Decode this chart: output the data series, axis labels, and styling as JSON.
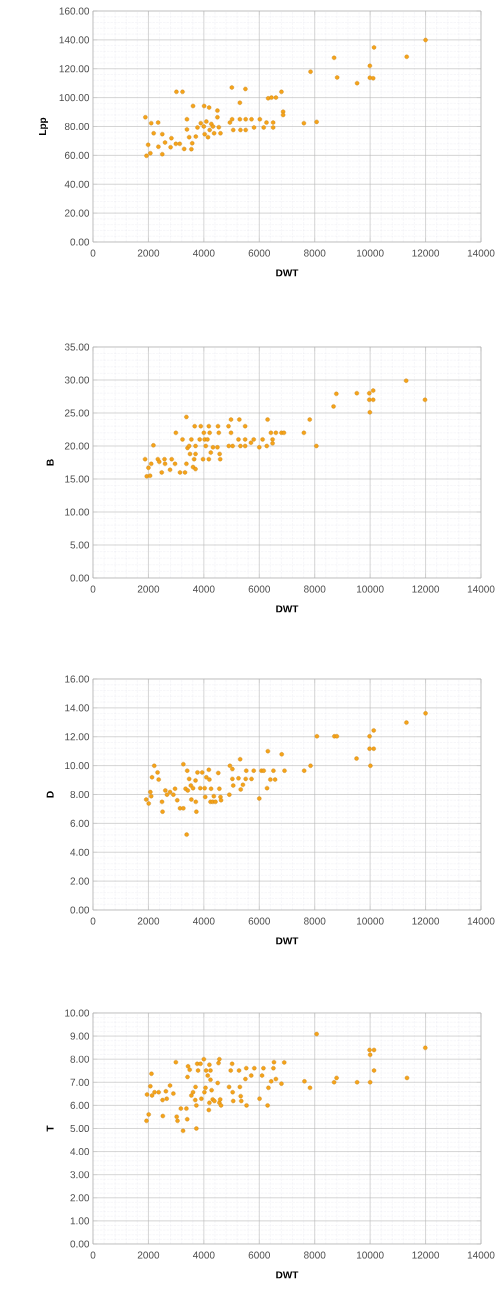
{
  "chart_data": [
    {
      "type": "scatter",
      "xlabel": "DWT",
      "ylabel": "Lpp",
      "color": "#f5a31a",
      "marker": "circle",
      "grid": true,
      "legend": false,
      "xlim": [
        0,
        14000
      ],
      "ylim": [
        0,
        160
      ],
      "xticks": [
        0,
        2000,
        4000,
        6000,
        8000,
        10000,
        12000,
        14000
      ],
      "yticks": [
        {
          "value": 0,
          "label": "0.00"
        },
        {
          "value": 20,
          "label": "20.00"
        },
        {
          "value": 40,
          "label": "40.00"
        },
        {
          "value": 60,
          "label": "60.00"
        },
        {
          "value": 80,
          "label": "80.00"
        },
        {
          "value": 100,
          "label": "100.00"
        },
        {
          "value": 120,
          "label": "120.00"
        },
        {
          "value": 140,
          "label": "140.00"
        },
        {
          "value": 160,
          "label": "160.00"
        }
      ],
      "x": [
        1890,
        1930,
        1990,
        2070,
        2100,
        2190,
        2350,
        2360,
        2500,
        2500,
        2600,
        2830,
        2800,
        2990,
        3010,
        3230,
        3130,
        3290,
        3390,
        3390,
        3470,
        3550,
        3580,
        3610,
        3710,
        3770,
        3890,
        4010,
        4000,
        4030,
        4090,
        4150,
        4190,
        4210,
        4270,
        4330,
        4370,
        4490,
        4490,
        4540,
        4600,
        4940,
        5010,
        5020,
        5060,
        5300,
        5300,
        5320,
        5500,
        5510,
        5510,
        5720,
        5810,
        6020,
        6160,
        6260,
        6320,
        6440,
        6500,
        6500,
        6600,
        6800,
        6860,
        6860,
        7610,
        7850,
        8070,
        8700,
        8810,
        9530,
        9990,
        9990,
        10110,
        10140,
        11320,
        12000
      ],
      "values": [
        86.4,
        59.7,
        67.3,
        61.5,
        82.3,
        75.3,
        82.7,
        66.0,
        74.7,
        60.8,
        68.9,
        71.9,
        65.7,
        68.0,
        104.0,
        104.0,
        68.0,
        64.5,
        85.0,
        78.0,
        72.6,
        64.3,
        68.4,
        94.2,
        73.0,
        79.3,
        82.3,
        94.2,
        80.0,
        74.7,
        83.4,
        72.6,
        93.1,
        77.6,
        81.8,
        80.0,
        75.3,
        91.0,
        86.4,
        79.5,
        75.3,
        82.7,
        107.0,
        85.0,
        77.6,
        96.5,
        85.0,
        77.6,
        106.0,
        85.0,
        77.6,
        85.0,
        79.3,
        85.0,
        79.3,
        82.7,
        99.5,
        100.0,
        82.7,
        79.3,
        100.0,
        104.0,
        90.3,
        88.0,
        82.3,
        118.0,
        83.2,
        127.6,
        114.0,
        110.0,
        122.0,
        113.8,
        113.4,
        134.8,
        128.3,
        139.9
      ]
    },
    {
      "type": "scatter",
      "xlabel": "DWT",
      "ylabel": "B",
      "color": "#f5a31a",
      "marker": "circle",
      "grid": true,
      "legend": false,
      "xlim": [
        0,
        14000
      ],
      "ylim": [
        0,
        35
      ],
      "xticks": [
        0,
        2000,
        4000,
        6000,
        8000,
        10000,
        12000,
        14000
      ],
      "yticks": [
        {
          "value": 0,
          "label": "0.00"
        },
        {
          "value": 5,
          "label": "5.00"
        },
        {
          "value": 10,
          "label": "10.00"
        },
        {
          "value": 15,
          "label": "15.00"
        },
        {
          "value": 20,
          "label": "20.00"
        },
        {
          "value": 25,
          "label": "25.00"
        },
        {
          "value": 30,
          "label": "30.00"
        },
        {
          "value": 35,
          "label": "35.00"
        }
      ],
      "x": [
        1880,
        1940,
        2000,
        2060,
        2100,
        2180,
        2340,
        2390,
        2480,
        2580,
        2600,
        2780,
        2840,
        2960,
        2990,
        3140,
        3230,
        3320,
        3370,
        3370,
        3410,
        3470,
        3500,
        3550,
        3610,
        3650,
        3670,
        3700,
        3700,
        3700,
        3850,
        3890,
        3970,
        4000,
        4030,
        4070,
        4130,
        4180,
        4180,
        4210,
        4250,
        4330,
        4490,
        4510,
        4540,
        4570,
        4590,
        4890,
        4900,
        4980,
        4980,
        5040,
        5250,
        5280,
        5320,
        5490,
        5490,
        5490,
        5700,
        5800,
        6000,
        6120,
        6270,
        6300,
        6420,
        6480,
        6480,
        6600,
        6800,
        6890,
        7610,
        7820,
        8060,
        8680,
        8780,
        9520,
        9970,
        9970,
        9990,
        10110,
        10110,
        11300,
        11980
      ],
      "values": [
        18.0,
        15.4,
        16.7,
        15.5,
        17.3,
        20.1,
        18.0,
        17.6,
        16.0,
        18.0,
        17.3,
        16.4,
        18.0,
        17.3,
        22.0,
        16.0,
        21.0,
        16.0,
        24.4,
        17.3,
        19.7,
        20.0,
        18.8,
        21.0,
        16.8,
        18.0,
        23.0,
        20.0,
        18.8,
        16.5,
        21.0,
        23.0,
        18.0,
        22.0,
        21.0,
        20.0,
        21.0,
        23.0,
        18.0,
        22.0,
        19.0,
        19.8,
        19.8,
        23.0,
        22.0,
        18.8,
        18.0,
        23.0,
        20.0,
        24.0,
        22.0,
        20.0,
        21.0,
        24.0,
        20.0,
        23.0,
        21.0,
        20.0,
        20.5,
        21.0,
        19.8,
        21.0,
        20.0,
        24.0,
        22.0,
        21.0,
        20.4,
        22.0,
        22.0,
        22.0,
        22.0,
        24.0,
        20.0,
        26.0,
        27.9,
        28.0,
        28.0,
        27.0,
        25.1,
        28.4,
        27.0,
        29.9,
        27.0
      ]
    },
    {
      "type": "scatter",
      "xlabel": "DWT",
      "ylabel": "D",
      "color": "#f5a31a",
      "marker": "circle",
      "grid": true,
      "legend": false,
      "xlim": [
        0,
        14000
      ],
      "ylim": [
        0,
        16
      ],
      "xticks": [
        0,
        2000,
        4000,
        6000,
        8000,
        10000,
        12000,
        14000
      ],
      "yticks": [
        {
          "value": 0,
          "label": "0.00"
        },
        {
          "value": 2,
          "label": "2.00"
        },
        {
          "value": 4,
          "label": "4.00"
        },
        {
          "value": 6,
          "label": "6.00"
        },
        {
          "value": 8,
          "label": "8.00"
        },
        {
          "value": 10,
          "label": "10.00"
        },
        {
          "value": 12,
          "label": "12.00"
        },
        {
          "value": 14,
          "label": "14.00"
        },
        {
          "value": 16,
          "label": "16.00"
        }
      ],
      "x": [
        1920,
        2010,
        2070,
        2100,
        2130,
        2210,
        2330,
        2370,
        2490,
        2510,
        2610,
        2670,
        2780,
        2900,
        2960,
        3040,
        3140,
        3260,
        3260,
        3340,
        3380,
        3400,
        3420,
        3470,
        3530,
        3550,
        3610,
        3700,
        3710,
        3730,
        3770,
        3870,
        3940,
        4030,
        4050,
        4090,
        4180,
        4200,
        4240,
        4260,
        4320,
        4360,
        4420,
        4520,
        4560,
        4600,
        4620,
        4920,
        4940,
        5030,
        5030,
        5060,
        5250,
        5310,
        5330,
        5410,
        5510,
        5530,
        5720,
        5800,
        6000,
        6080,
        6160,
        6280,
        6310,
        6400,
        6510,
        6570,
        6810,
        6910,
        7620,
        7850,
        8080,
        8710,
        8800,
        9510,
        9980,
        9980,
        10010,
        10130,
        10130,
        11310,
        12000
      ],
      "values": [
        7.65,
        7.38,
        8.17,
        7.88,
        9.19,
        9.99,
        9.53,
        9.03,
        7.49,
        6.81,
        8.28,
        7.99,
        8.17,
        7.99,
        8.4,
        7.6,
        7.04,
        10.1,
        7.04,
        8.4,
        5.22,
        9.65,
        8.28,
        9.08,
        8.62,
        7.65,
        8.44,
        8.97,
        7.49,
        6.81,
        9.53,
        8.44,
        9.53,
        8.44,
        7.83,
        9.19,
        9.71,
        9.03,
        7.49,
        8.4,
        7.49,
        7.88,
        7.49,
        9.49,
        8.4,
        7.83,
        7.6,
        7.99,
        9.99,
        9.76,
        9.08,
        8.62,
        9.12,
        10.44,
        8.35,
        8.67,
        9.08,
        9.65,
        9.08,
        9.65,
        7.72,
        9.65,
        9.65,
        8.44,
        11.0,
        9.03,
        9.65,
        9.03,
        10.78,
        9.65,
        9.65,
        9.99,
        12.03,
        12.03,
        12.03,
        10.49,
        12.03,
        11.17,
        9.99,
        12.44,
        11.17,
        12.98,
        13.62
      ]
    },
    {
      "type": "scatter",
      "xlabel": "DWT",
      "ylabel": "T",
      "color": "#f5a31a",
      "marker": "circle",
      "grid": true,
      "legend": false,
      "xlim": [
        0,
        14000
      ],
      "ylim": [
        0,
        10
      ],
      "xticks": [
        0,
        2000,
        4000,
        6000,
        8000,
        10000,
        12000,
        14000
      ],
      "yticks": [
        {
          "value": 0,
          "label": "0.00"
        },
        {
          "value": 1,
          "label": "1.00"
        },
        {
          "value": 2,
          "label": "2.00"
        },
        {
          "value": 3,
          "label": "3.00"
        },
        {
          "value": 4,
          "label": "4.00"
        },
        {
          "value": 5,
          "label": "5.00"
        },
        {
          "value": 6,
          "label": "6.00"
        },
        {
          "value": 7,
          "label": "7.00"
        },
        {
          "value": 8,
          "label": "8.00"
        },
        {
          "value": 9,
          "label": "9.00"
        },
        {
          "value": 10,
          "label": "10.00"
        }
      ],
      "x": [
        1930,
        1950,
        2010,
        2070,
        2110,
        2130,
        2220,
        2370,
        2510,
        2520,
        2630,
        2660,
        2780,
        2900,
        2990,
        3020,
        3050,
        3170,
        3250,
        3370,
        3400,
        3410,
        3430,
        3490,
        3550,
        3610,
        3690,
        3700,
        3730,
        3730,
        3760,
        3790,
        3880,
        3910,
        4000,
        4020,
        4060,
        4080,
        4140,
        4180,
        4200,
        4200,
        4240,
        4240,
        4280,
        4320,
        4380,
        4500,
        4530,
        4560,
        4560,
        4590,
        4620,
        4910,
        4970,
        5020,
        5040,
        5060,
        5270,
        5300,
        5330,
        5350,
        5500,
        5530,
        5540,
        5710,
        5820,
        6010,
        6100,
        6150,
        6300,
        6330,
        6430,
        6510,
        6530,
        6600,
        6800,
        6900,
        7630,
        7830,
        8070,
        8700,
        8790,
        9530,
        9980,
        10000,
        10000,
        10140,
        10140,
        11330,
        11990
      ],
      "values": [
        5.33,
        6.47,
        5.61,
        6.83,
        7.37,
        6.43,
        6.57,
        6.57,
        6.23,
        5.54,
        6.61,
        6.29,
        6.86,
        6.51,
        7.87,
        5.51,
        5.33,
        5.86,
        4.9,
        5.86,
        5.4,
        7.23,
        7.69,
        7.54,
        6.43,
        6.57,
        6.23,
        6.8,
        5.0,
        6.0,
        7.8,
        7.51,
        7.8,
        6.29,
        8.0,
        6.57,
        6.76,
        7.51,
        7.29,
        5.8,
        7.76,
        6.11,
        7.51,
        7.11,
        6.66,
        6.26,
        6.19,
        6.97,
        7.83,
        8.0,
        6.11,
        6.26,
        6.0,
        6.8,
        7.51,
        7.8,
        6.57,
        6.19,
        7.51,
        6.8,
        6.4,
        6.19,
        7.14,
        7.61,
        6.0,
        7.29,
        7.61,
        6.29,
        7.29,
        7.61,
        6.0,
        6.76,
        7.04,
        7.61,
        7.87,
        7.14,
        6.94,
        7.86,
        7.04,
        6.76,
        9.09,
        7.0,
        7.19,
        7.0,
        8.4,
        8.19,
        7.0,
        8.4,
        7.51,
        7.19,
        8.49
      ]
    }
  ]
}
